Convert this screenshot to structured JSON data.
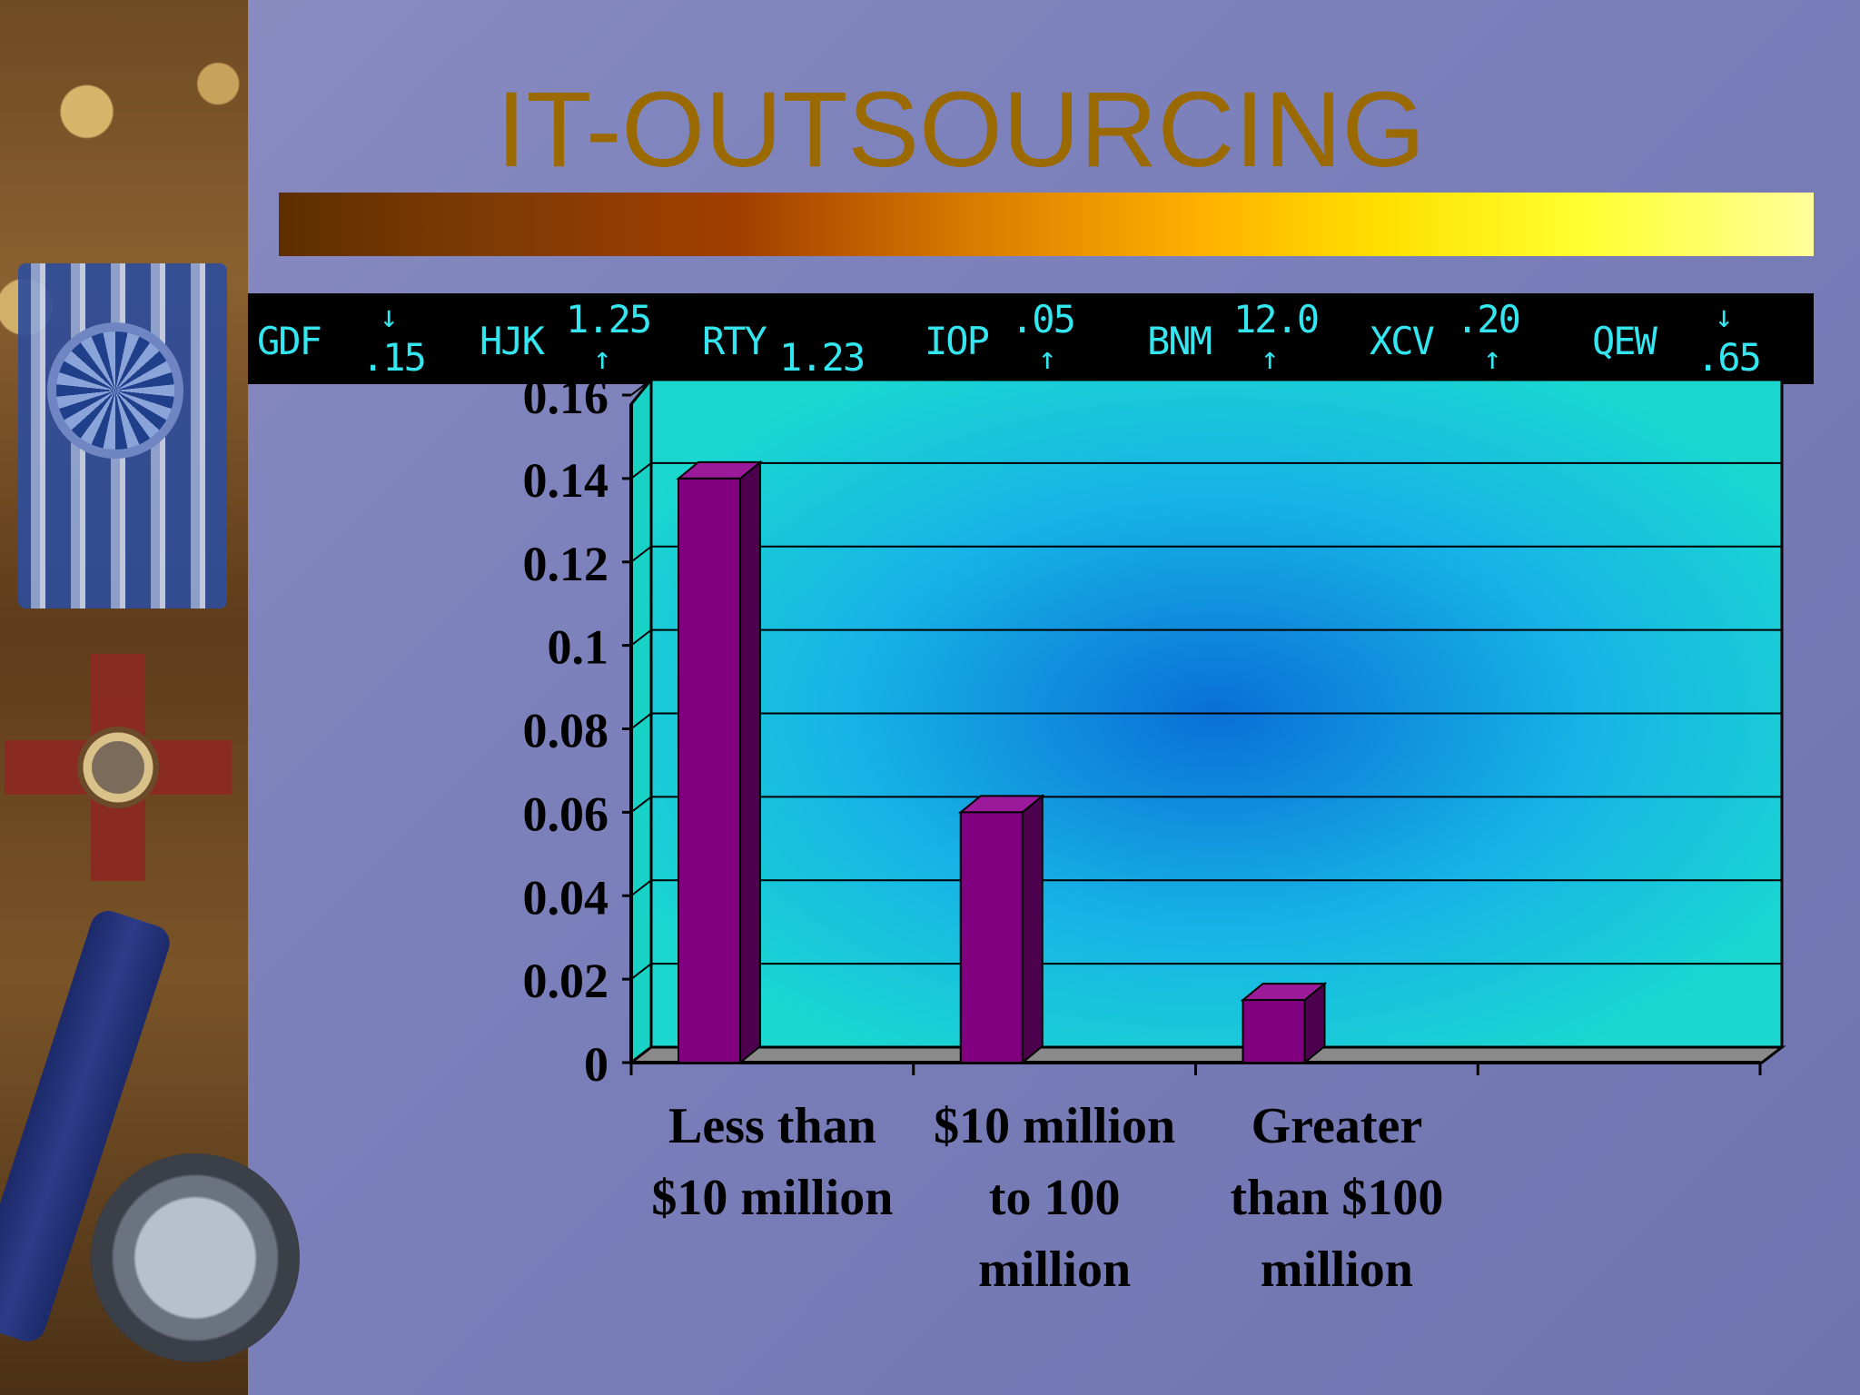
{
  "slide": {
    "title": "IT-OUTSOURCING"
  },
  "ticker": [
    {
      "symbol": "GDF",
      "arrow": "↓",
      "value": ".15",
      "arrow_pos": "top"
    },
    {
      "symbol": "HJK",
      "arrow": "↑",
      "value": "1.25",
      "arrow_pos": "bottom"
    },
    {
      "symbol": "RTY",
      "arrow": "",
      "value": "1.23",
      "arrow_pos": "none"
    },
    {
      "symbol": "IOP",
      "arrow": "↑",
      "value": ".05",
      "arrow_pos": "bottom"
    },
    {
      "symbol": "BNM",
      "arrow": "↑",
      "value": "12.0",
      "arrow_pos": "bottom"
    },
    {
      "symbol": "XCV",
      "arrow": "↑",
      "value": ".20",
      "arrow_pos": "bottom"
    },
    {
      "symbol": "QEW",
      "arrow": "↓",
      "value": ".65",
      "arrow_pos": "top"
    }
  ],
  "chart_data": {
    "type": "bar",
    "categories": [
      [
        "Less than",
        "$10 million"
      ],
      [
        "$10 million",
        "to  100",
        "million"
      ],
      [
        "Greater",
        "than $100",
        "million"
      ],
      [
        ""
      ]
    ],
    "values": [
      0.14,
      0.06,
      0.015,
      null
    ],
    "ylim": [
      0,
      0.16
    ],
    "yticks": [
      "0",
      "0.02",
      "0.04",
      "0.06",
      "0.08",
      "0.1",
      "0.12",
      "0.14",
      "0.16"
    ],
    "grid": true,
    "title": "",
    "xlabel": "",
    "ylabel": "",
    "colors": {
      "bar_front": "#800080",
      "bar_top": "#9a1a9a",
      "bar_side": "#4d004d",
      "wall_edge": "#1ad4c8",
      "wall_center": "#0a6fd6",
      "floor": "#8a8a8a"
    }
  }
}
